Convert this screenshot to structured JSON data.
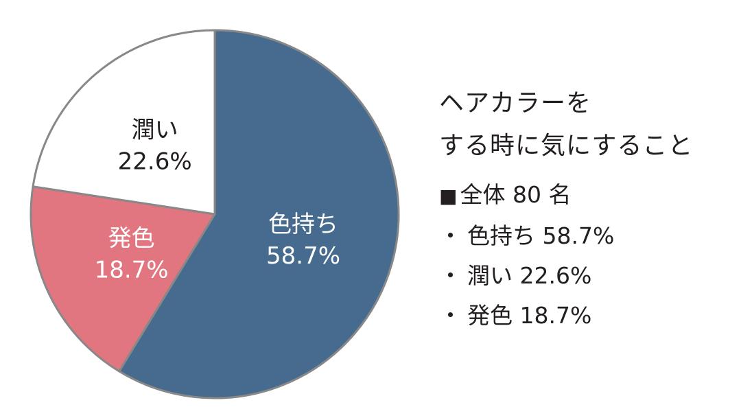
{
  "chart_data": {
    "type": "pie",
    "title_lines": [
      "ヘアカラーを",
      "する時に気にすること"
    ],
    "total_label": "全体 80 名",
    "total_marker": "■",
    "legend_bullet": "・",
    "slices": [
      {
        "label": "色持ち",
        "value": 58.7,
        "value_text": "58.7%",
        "color": "#466b8f",
        "text_color": "#ffffff"
      },
      {
        "label": "発色",
        "value": 18.7,
        "value_text": "18.7%",
        "color": "#e17680",
        "text_color": "#ffffff"
      },
      {
        "label": "潤い",
        "value": 22.6,
        "value_text": "22.6%",
        "color": "#ffffff",
        "text_color": "#231f20"
      }
    ],
    "outline_color": "#888888",
    "start": "12 o'clock",
    "direction": "clockwise"
  }
}
